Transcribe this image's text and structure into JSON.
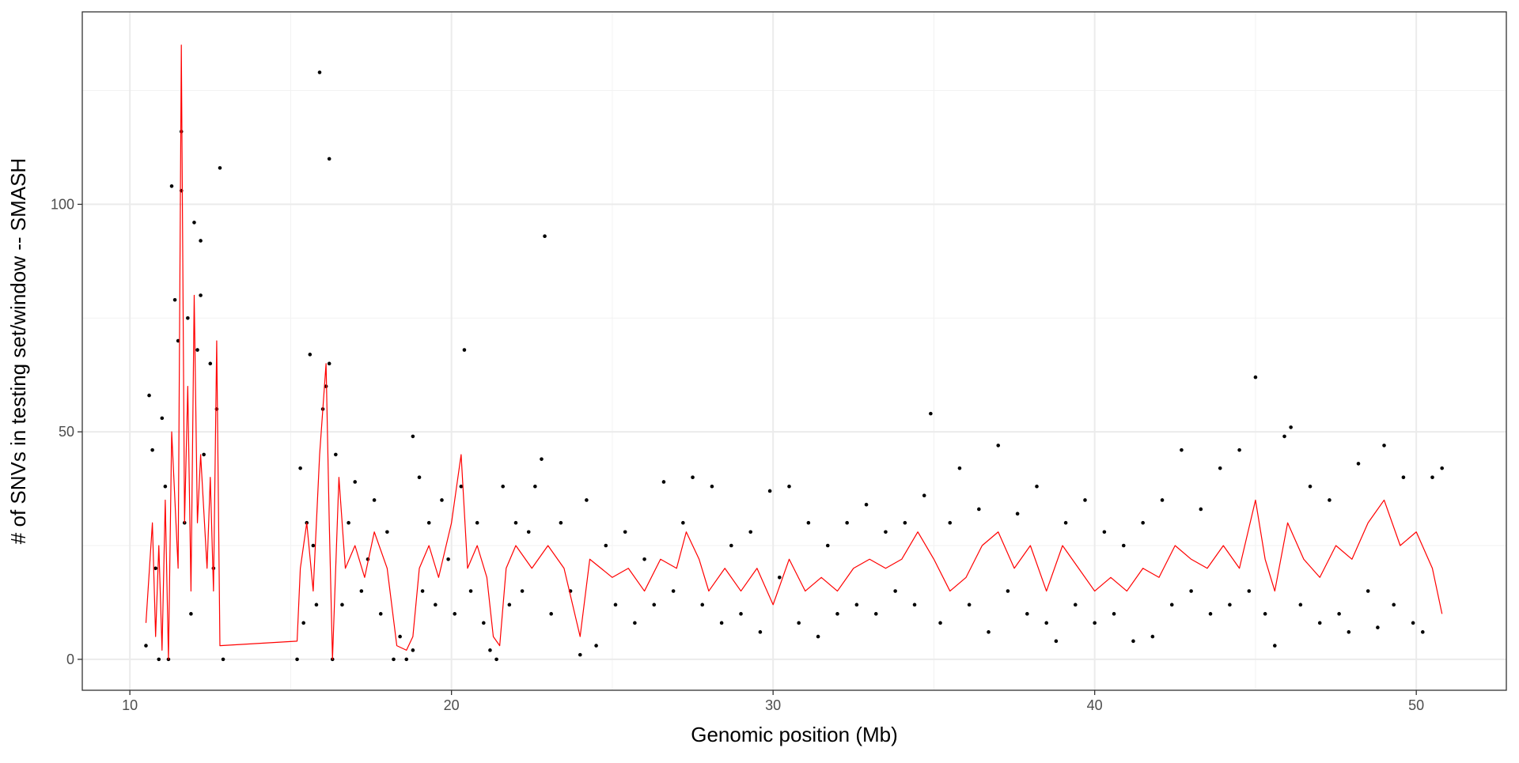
{
  "chart_data": {
    "type": "scatter",
    "x_label": "Genomic position (Mb)",
    "y_label": "# of SNVs in testing set/window -- SMASH",
    "xlim": [
      8.52,
      52.8
    ],
    "ylim": [
      -6.8,
      142.3
    ],
    "xticks": [
      10,
      20,
      30,
      40,
      50
    ],
    "yticks": [
      0,
      50,
      100
    ],
    "x_minor_grid": [
      15,
      25,
      35,
      45
    ],
    "y_minor_grid": [
      25,
      75,
      125
    ],
    "grid": true,
    "series": [
      {
        "type": "scatter",
        "color": "#000000",
        "x": [
          10.5,
          10.6,
          10.7,
          10.8,
          10.9,
          11.0,
          11.1,
          11.2,
          11.3,
          11.4,
          11.5,
          11.6,
          11.6,
          11.7,
          11.8,
          11.9,
          12.0,
          12.1,
          12.2,
          12.2,
          12.3,
          12.5,
          12.6,
          12.7,
          12.8,
          12.9,
          15.2,
          15.3,
          15.4,
          15.5,
          15.6,
          15.7,
          15.8,
          15.9,
          16.0,
          16.1,
          16.2,
          16.2,
          16.3,
          16.4,
          16.6,
          16.8,
          17.0,
          17.2,
          17.4,
          17.6,
          17.8,
          18.0,
          18.2,
          18.4,
          18.6,
          18.8,
          18.8,
          19.0,
          19.1,
          19.3,
          19.5,
          19.7,
          19.9,
          20.1,
          20.3,
          20.4,
          20.6,
          20.8,
          21.0,
          21.2,
          21.4,
          21.6,
          21.8,
          22.0,
          22.2,
          22.4,
          22.6,
          22.8,
          22.9,
          23.1,
          23.4,
          23.7,
          24.0,
          24.2,
          24.5,
          24.8,
          25.1,
          25.4,
          25.7,
          26.0,
          26.3,
          26.6,
          26.9,
          27.2,
          27.5,
          27.8,
          28.1,
          28.4,
          28.7,
          29.0,
          29.3,
          29.6,
          29.9,
          30.2,
          30.5,
          30.8,
          31.1,
          31.4,
          31.7,
          32.0,
          32.3,
          32.6,
          32.9,
          33.2,
          33.5,
          33.8,
          34.1,
          34.4,
          34.7,
          34.9,
          35.2,
          35.5,
          35.8,
          36.1,
          36.4,
          36.7,
          37.0,
          37.3,
          37.6,
          37.9,
          38.2,
          38.5,
          38.8,
          39.1,
          39.4,
          39.7,
          40.0,
          40.3,
          40.6,
          40.9,
          41.2,
          41.5,
          41.8,
          42.1,
          42.4,
          42.7,
          43.0,
          43.3,
          43.6,
          43.9,
          44.2,
          44.5,
          44.8,
          45.0,
          45.3,
          45.6,
          45.9,
          46.1,
          46.4,
          46.7,
          47.0,
          47.3,
          47.6,
          47.9,
          48.2,
          48.5,
          48.8,
          49.0,
          49.3,
          49.6,
          49.9,
          50.2,
          50.5,
          50.8
        ],
        "values": [
          3,
          58,
          46,
          20,
          0,
          53,
          38,
          0,
          104,
          79,
          70,
          116,
          103,
          30,
          75,
          10,
          96,
          68,
          92,
          80,
          45,
          65,
          20,
          55,
          108,
          0,
          0,
          42,
          8,
          30,
          67,
          25,
          12,
          129,
          55,
          60,
          110,
          65,
          0,
          45,
          12,
          30,
          39,
          15,
          22,
          35,
          10,
          28,
          0,
          5,
          0,
          49,
          2,
          40,
          15,
          30,
          12,
          35,
          22,
          10,
          38,
          68,
          15,
          30,
          8,
          2,
          0,
          38,
          12,
          30,
          15,
          28,
          38,
          44,
          93,
          10,
          30,
          15,
          1,
          35,
          3,
          25,
          12,
          28,
          8,
          22,
          12,
          39,
          15,
          30,
          40,
          12,
          38,
          8,
          25,
          10,
          28,
          6,
          37,
          18,
          38,
          8,
          30,
          5,
          25,
          10,
          30,
          12,
          34,
          10,
          28,
          15,
          30,
          12,
          36,
          54,
          8,
          30,
          42,
          12,
          33,
          6,
          47,
          15,
          32,
          10,
          38,
          8,
          4,
          30,
          12,
          35,
          8,
          28,
          10,
          25,
          4,
          30,
          5,
          35,
          12,
          46,
          15,
          33,
          10,
          42,
          12,
          46,
          15,
          62,
          10,
          3,
          49,
          51,
          12,
          38,
          8,
          35,
          10,
          6,
          43,
          15,
          7,
          47,
          12,
          40,
          8,
          6,
          40,
          42
        ]
      },
      {
        "type": "line",
        "color": "#ff0000",
        "x": [
          10.5,
          10.7,
          10.8,
          10.9,
          11.0,
          11.1,
          11.2,
          11.3,
          11.5,
          11.6,
          11.7,
          11.8,
          11.9,
          12.0,
          12.1,
          12.2,
          12.4,
          12.5,
          12.6,
          12.7,
          12.8,
          15.2,
          15.3,
          15.5,
          15.7,
          15.9,
          16.1,
          16.2,
          16.3,
          16.5,
          16.7,
          17.0,
          17.3,
          17.6,
          18.0,
          18.3,
          18.6,
          18.8,
          19.0,
          19.3,
          19.6,
          20.0,
          20.3,
          20.5,
          20.8,
          21.1,
          21.3,
          21.5,
          21.7,
          22.0,
          22.5,
          23.0,
          23.5,
          24.0,
          24.3,
          25.0,
          25.5,
          26.0,
          26.5,
          27.0,
          27.3,
          27.7,
          28.0,
          28.5,
          29.0,
          29.5,
          30.0,
          30.5,
          31.0,
          31.5,
          32.0,
          32.5,
          33.0,
          33.5,
          34.0,
          34.5,
          35.0,
          35.5,
          36.0,
          36.5,
          37.0,
          37.5,
          38.0,
          38.5,
          39.0,
          39.5,
          40.0,
          40.5,
          41.0,
          41.5,
          42.0,
          42.5,
          43.0,
          43.5,
          44.0,
          44.5,
          45.0,
          45.3,
          45.6,
          46.0,
          46.5,
          47.0,
          47.5,
          48.0,
          48.5,
          49.0,
          49.5,
          50.0,
          50.5,
          50.8
        ],
        "values": [
          8,
          30,
          5,
          25,
          2,
          35,
          0,
          50,
          20,
          135,
          30,
          60,
          15,
          80,
          30,
          45,
          20,
          40,
          15,
          70,
          3,
          4,
          20,
          30,
          15,
          45,
          65,
          30,
          0,
          40,
          20,
          25,
          18,
          28,
          20,
          3,
          2,
          5,
          20,
          25,
          18,
          30,
          45,
          20,
          25,
          18,
          5,
          3,
          20,
          25,
          20,
          25,
          20,
          5,
          22,
          18,
          20,
          15,
          22,
          20,
          28,
          22,
          15,
          20,
          15,
          20,
          12,
          22,
          15,
          18,
          15,
          20,
          22,
          20,
          22,
          28,
          22,
          15,
          18,
          25,
          28,
          20,
          25,
          15,
          25,
          20,
          15,
          18,
          15,
          20,
          18,
          25,
          22,
          20,
          25,
          20,
          35,
          22,
          15,
          30,
          22,
          18,
          25,
          22,
          30,
          35,
          25,
          28,
          20,
          10
        ]
      }
    ]
  }
}
